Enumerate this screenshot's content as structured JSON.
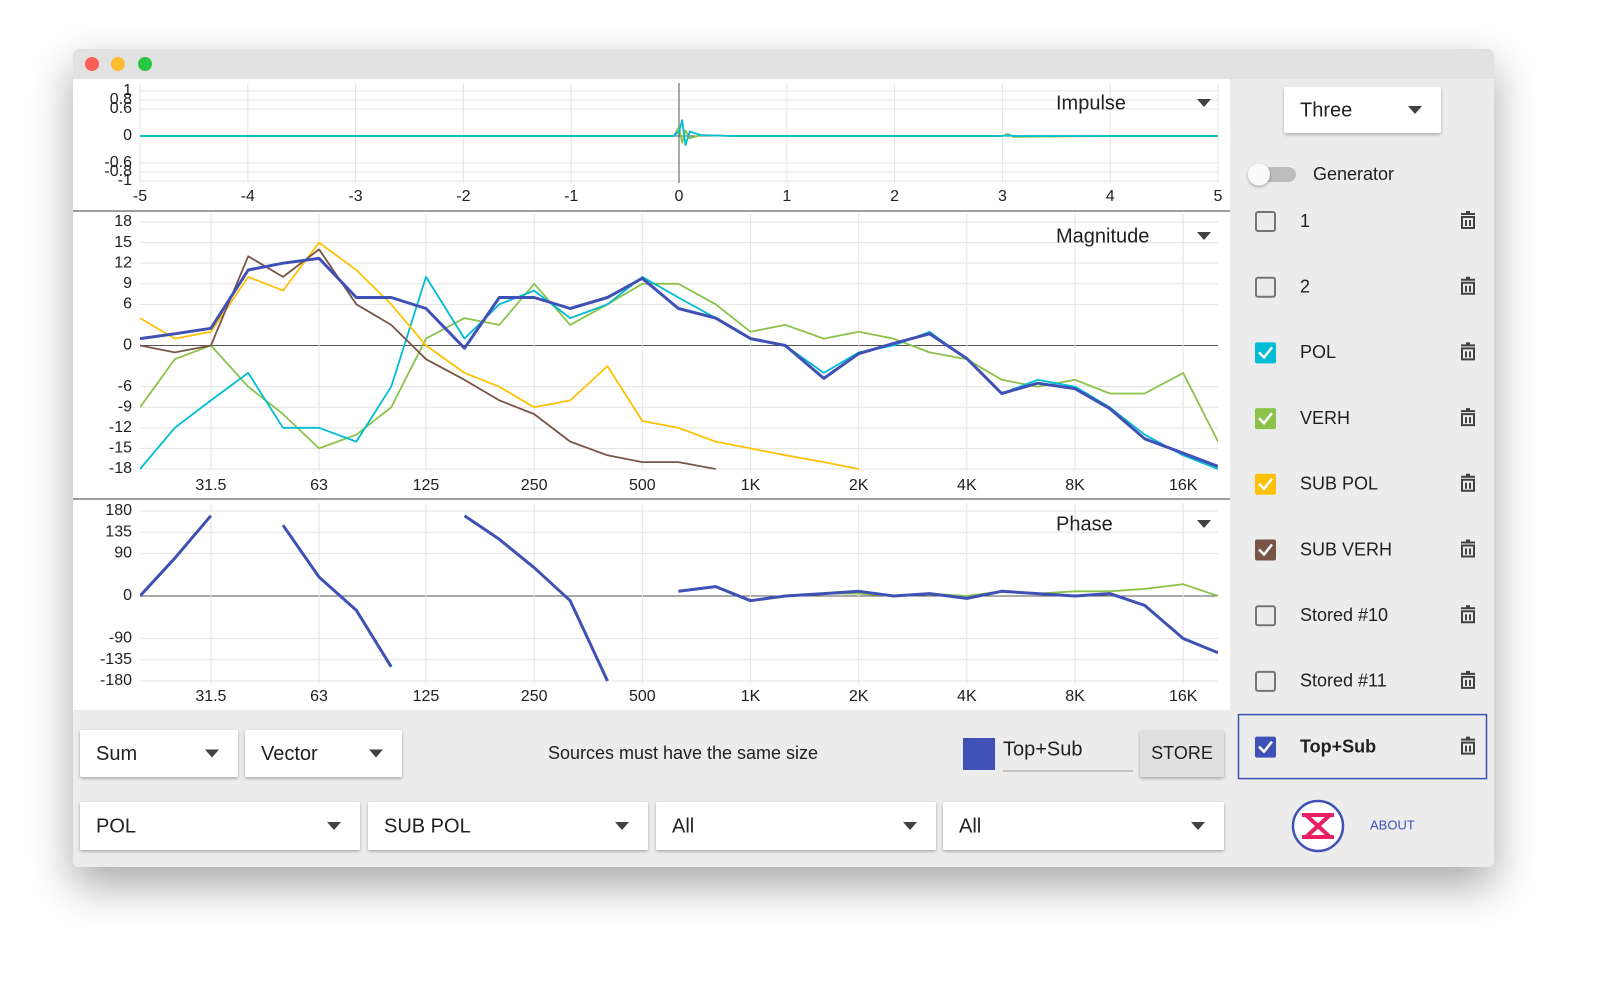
{
  "chart_data": [
    {
      "type": "line",
      "title": "Impulse",
      "xlim": [
        -5,
        5
      ],
      "xticks": [
        -5,
        -4,
        -3,
        -2,
        -1,
        0,
        1,
        2,
        3,
        4,
        5
      ],
      "ylim": [
        -1,
        1
      ],
      "yticks": [
        1,
        0.8,
        0.6,
        0,
        -0.6,
        -0.8,
        -1
      ],
      "grid": true,
      "x": [
        -5,
        -1,
        -0.05,
        0,
        0.03,
        0.06,
        0.1,
        0.2,
        0.5,
        1,
        2,
        3,
        3.05,
        3.1,
        4,
        5
      ],
      "series": [
        {
          "color": "#8bc34a",
          "values": [
            0,
            0,
            0,
            0.2,
            -0.15,
            0.12,
            -0.05,
            0.02,
            0,
            0,
            0,
            0,
            0.05,
            -0.02,
            0,
            0
          ]
        },
        {
          "color": "#00bcd4",
          "values": [
            0,
            0,
            0,
            0.1,
            0.35,
            -0.2,
            0.1,
            0.02,
            0,
            0,
            0,
            0,
            0.02,
            0,
            0,
            0
          ]
        }
      ]
    },
    {
      "type": "line",
      "title": "Magnitude",
      "log_x": true,
      "xlim": [
        20,
        20000
      ],
      "xticks": [
        31.5,
        63,
        125,
        250,
        500,
        {
          "value": 1000,
          "label": "1K"
        },
        {
          "value": 2000,
          "label": "2K"
        },
        {
          "value": 4000,
          "label": "4K"
        },
        {
          "value": 8000,
          "label": "8K"
        },
        {
          "value": 16000,
          "label": "16K"
        }
      ],
      "ylim": [
        -18,
        18
      ],
      "yticks": [
        18,
        15,
        12,
        9,
        6,
        0,
        -6,
        -9,
        -12,
        -15,
        -18
      ],
      "grid": true,
      "x": [
        20,
        25,
        31.5,
        40,
        50,
        63,
        80,
        100,
        125,
        160,
        200,
        250,
        315,
        400,
        500,
        630,
        800,
        1000,
        1250,
        1600,
        2000,
        2500,
        3150,
        4000,
        5000,
        6300,
        8000,
        10000,
        12500,
        16000,
        20000
      ],
      "series": [
        {
          "color": "#8bc34a",
          "values": [
            -9,
            -2,
            0,
            -6,
            -10,
            -15,
            -13,
            -9,
            1,
            4,
            3,
            9,
            3,
            6,
            9,
            9,
            6,
            2,
            3,
            1,
            2,
            1,
            -1,
            -2,
            -5,
            -6,
            -5,
            -7,
            -7,
            -4,
            -14
          ]
        },
        {
          "color": "#00bcd4",
          "values": [
            -18,
            -12,
            -8,
            -4,
            -12,
            -12,
            -14,
            -6,
            10,
            1,
            6,
            8,
            4,
            6,
            10,
            7,
            4,
            1,
            0,
            -4,
            -1,
            0,
            2,
            -2,
            -7,
            -5,
            -6,
            -9,
            -13,
            -16,
            -18
          ]
        },
        {
          "color": "#ffc107",
          "values": [
            4,
            1,
            2,
            10,
            8,
            15,
            11,
            6,
            0,
            -4,
            -6,
            -9,
            -8,
            -3,
            -11,
            -12,
            -14,
            -15,
            -16,
            -17,
            -18,
            null,
            null,
            null,
            null,
            null,
            null,
            null,
            null,
            null,
            null
          ]
        },
        {
          "color": "#795548",
          "values": [
            0,
            -1,
            0,
            13,
            10,
            14,
            6,
            3,
            -2,
            -5,
            -8,
            -10,
            -14,
            -16,
            -17,
            -17,
            -18,
            null,
            null,
            null,
            null,
            null,
            null,
            null,
            null,
            null,
            null,
            null,
            null,
            null,
            null
          ]
        },
        {
          "color": "#3f51b5",
          "width": 3,
          "values": [
            1,
            1.7,
            2.5,
            11,
            12,
            12.7,
            7,
            7,
            5.4,
            -0.4,
            7,
            7,
            5.4,
            7,
            9.8,
            5.4,
            4,
            1,
            0,
            -4.8,
            -1.2,
            0.3,
            1.7,
            -1.9,
            -7,
            -5.5,
            -6.3,
            -9.2,
            -13.6,
            -15.7,
            -17.6
          ]
        }
      ]
    },
    {
      "type": "line",
      "title": "Phase",
      "log_x": true,
      "xlim": [
        20,
        20000
      ],
      "xticks": [
        31.5,
        63,
        125,
        250,
        500,
        {
          "value": 1000,
          "label": "1K"
        },
        {
          "value": 2000,
          "label": "2K"
        },
        {
          "value": 4000,
          "label": "4K"
        },
        {
          "value": 8000,
          "label": "8K"
        },
        {
          "value": 16000,
          "label": "16K"
        }
      ],
      "ylim": [
        -180,
        180
      ],
      "yticks": [
        180,
        135,
        90,
        0,
        -90,
        -135,
        -180
      ],
      "grid": true,
      "x": [
        20,
        25,
        31.5,
        40,
        50,
        63,
        80,
        100,
        125,
        160,
        200,
        250,
        315,
        400,
        500,
        630,
        800,
        1000,
        1250,
        1600,
        2000,
        2500,
        3150,
        4000,
        5000,
        6300,
        8000,
        10000,
        12500,
        16000,
        20000
      ],
      "series": [
        {
          "color": "#8bc34a",
          "values": [
            null,
            null,
            null,
            null,
            null,
            null,
            null,
            null,
            null,
            null,
            null,
            null,
            null,
            null,
            null,
            null,
            null,
            null,
            0,
            5,
            5,
            0,
            5,
            0,
            10,
            5,
            10,
            10,
            15,
            25,
            0
          ]
        },
        {
          "color": "#3f51b5",
          "width": 3,
          "values": [
            0,
            80,
            170,
            null,
            150,
            40,
            -30,
            -150,
            null,
            170,
            120,
            60,
            -10,
            -180,
            null,
            10,
            20,
            -10,
            0,
            5,
            10,
            0,
            5,
            -5,
            10,
            5,
            0,
            5,
            -20,
            -90,
            -120
          ]
        }
      ]
    }
  ],
  "sidebar": {
    "preset": "Three",
    "generator": "Generator",
    "sources": [
      {
        "name": "1",
        "checked": false,
        "color": "#757575"
      },
      {
        "name": "2",
        "checked": false,
        "color": "#757575"
      },
      {
        "name": "POL",
        "checked": true,
        "color": "#00bcd4"
      },
      {
        "name": "VERH",
        "checked": true,
        "color": "#8bc34a"
      },
      {
        "name": "SUB POL",
        "checked": true,
        "color": "#ffc107"
      },
      {
        "name": "SUB VERH",
        "checked": true,
        "color": "#795548"
      },
      {
        "name": "Stored #10",
        "checked": false,
        "color": "#757575"
      },
      {
        "name": "Stored #11",
        "checked": false,
        "color": "#757575"
      },
      {
        "name": "Top+Sub",
        "checked": true,
        "color": "#3f51b5",
        "selected": true
      }
    ],
    "about": "ABOUT"
  },
  "controls": {
    "mode": "Sum",
    "method": "Vector",
    "message": "Sources must have the same size",
    "store_color": "#3f51b5",
    "store_name": "Top+Sub",
    "store_button": "STORE",
    "selectors": [
      "POL",
      "SUB POL",
      "All",
      "All"
    ]
  }
}
